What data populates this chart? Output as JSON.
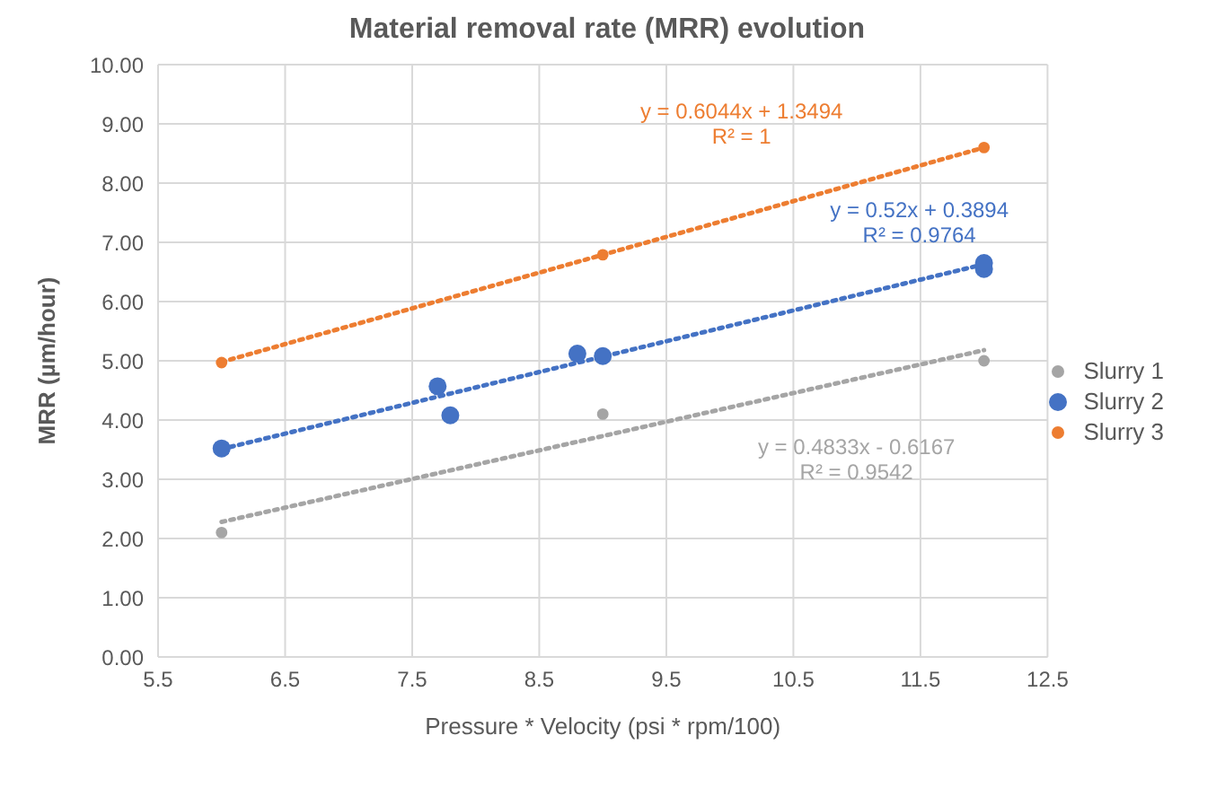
{
  "chart_data": {
    "type": "scatter",
    "title": "Material removal rate (MRR) evolution",
    "xlabel": "Pressure * Velocity (psi * rpm/100)",
    "ylabel": "MRR (µm/hour)",
    "series": [
      {
        "name": "Slurry 1",
        "color": "#a5a5a5",
        "x": [
          6,
          9,
          12
        ],
        "values": [
          2.1,
          4.1,
          5.0
        ]
      },
      {
        "name": "Slurry 2",
        "color": "#4472c4",
        "x": [
          6,
          7.7,
          7.8,
          8.8,
          9.0,
          12,
          12
        ],
        "values": [
          3.52,
          4.57,
          4.08,
          5.12,
          5.08,
          6.55,
          6.65
        ]
      },
      {
        "name": "Slurry 3",
        "color": "#ed7d31",
        "x": [
          6,
          9,
          12
        ],
        "values": [
          4.97,
          6.79,
          8.6
        ]
      },
      {
        "type": "line",
        "color": "#a5a5a5",
        "x": [
          6,
          12
        ],
        "values": [
          2.28,
          5.18
        ],
        "line_style": "dotted",
        "marker": "none"
      },
      {
        "type": "line",
        "color": "#4472c4",
        "x": [
          6,
          12
        ],
        "values": [
          3.51,
          6.63
        ],
        "line_style": "dotted",
        "marker": "none"
      },
      {
        "type": "line",
        "color": "#ed7d31",
        "x": [
          6,
          12
        ],
        "values": [
          4.98,
          8.6
        ],
        "line_style": "dotted",
        "marker": "none"
      }
    ],
    "annotations": [
      "y = 0.4833x - 0.6167",
      "R² = 0.9542",
      "y = 0.52x + 0.3894",
      "R² = 0.9764",
      "y = 0.6044x + 1.3494",
      "R² = 1"
    ],
    "xlim": [
      5.5,
      12.5
    ],
    "xticks": [
      5.5,
      6.5,
      7.5,
      8.5,
      9.5,
      10.5,
      11.5,
      12.5
    ],
    "ylim": [
      0,
      10
    ],
    "yticks": [
      {
        "value": 0,
        "label": "0.00"
      },
      {
        "value": 1,
        "label": "1.00"
      },
      {
        "value": 2,
        "label": "2.00"
      },
      {
        "value": 3,
        "label": "3.00"
      },
      {
        "value": 4,
        "label": "4.00"
      },
      {
        "value": 5,
        "label": "5.00"
      },
      {
        "value": 6,
        "label": "6.00"
      },
      {
        "value": 7,
        "label": "7.00"
      },
      {
        "value": 8,
        "label": "8.00"
      },
      {
        "value": 9,
        "label": "9.00"
      },
      {
        "value": 10,
        "label": "10.00"
      }
    ],
    "grid": true,
    "legend": "right",
    "marker": "circle"
  }
}
